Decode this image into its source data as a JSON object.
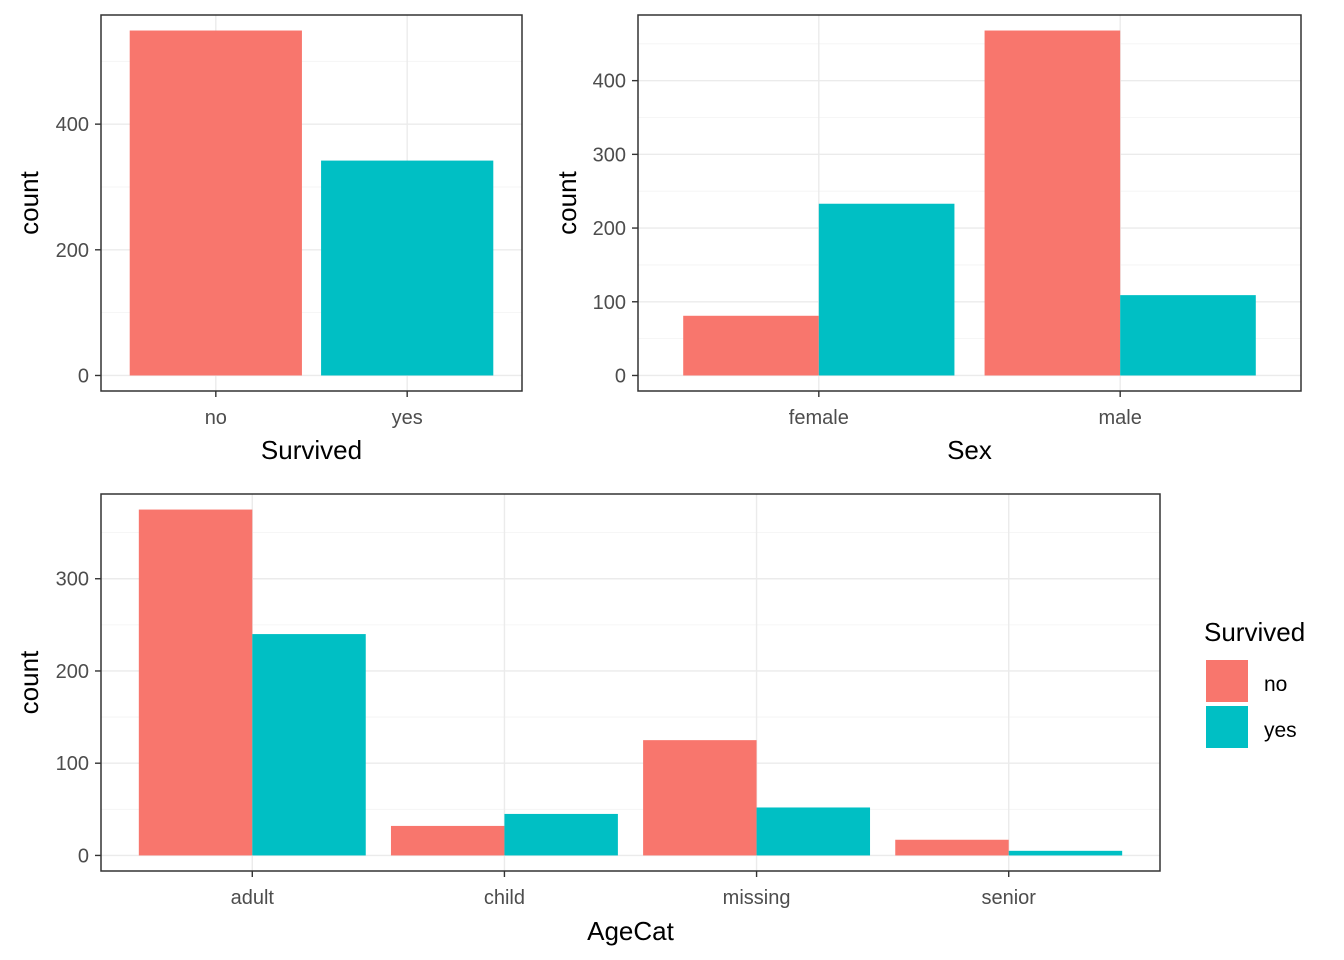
{
  "colors": {
    "no": "#F8766D",
    "yes": "#00BFC4"
  },
  "legend": {
    "title": "Survived",
    "entries": [
      "no",
      "yes"
    ],
    "placement": "right"
  },
  "chart_data": [
    {
      "type": "bar",
      "xlabel": "Survived",
      "ylabel": "count",
      "categories": [
        "no",
        "yes"
      ],
      "series": [
        {
          "name": "no",
          "values": [
            549,
            null
          ]
        },
        {
          "name": "yes",
          "values": [
            null,
            342
          ]
        }
      ],
      "ylim": [
        0,
        549
      ],
      "yticks": [
        0,
        200,
        400
      ],
      "grid": true
    },
    {
      "type": "bar",
      "xlabel": "Sex",
      "ylabel": "count",
      "categories": [
        "female",
        "male"
      ],
      "series": [
        {
          "name": "no",
          "values": [
            81,
            468
          ]
        },
        {
          "name": "yes",
          "values": [
            233,
            109
          ]
        }
      ],
      "ylim": [
        0,
        468
      ],
      "yticks": [
        0,
        100,
        200,
        300,
        400
      ],
      "grid": true
    },
    {
      "type": "bar",
      "xlabel": "AgeCat",
      "ylabel": "count",
      "categories": [
        "adult",
        "child",
        "missing",
        "senior"
      ],
      "series": [
        {
          "name": "no",
          "values": [
            375,
            32,
            125,
            17
          ]
        },
        {
          "name": "yes",
          "values": [
            240,
            45,
            52,
            5
          ]
        }
      ],
      "ylim": [
        0,
        375
      ],
      "yticks": [
        0,
        100,
        200,
        300
      ],
      "grid": true
    }
  ]
}
